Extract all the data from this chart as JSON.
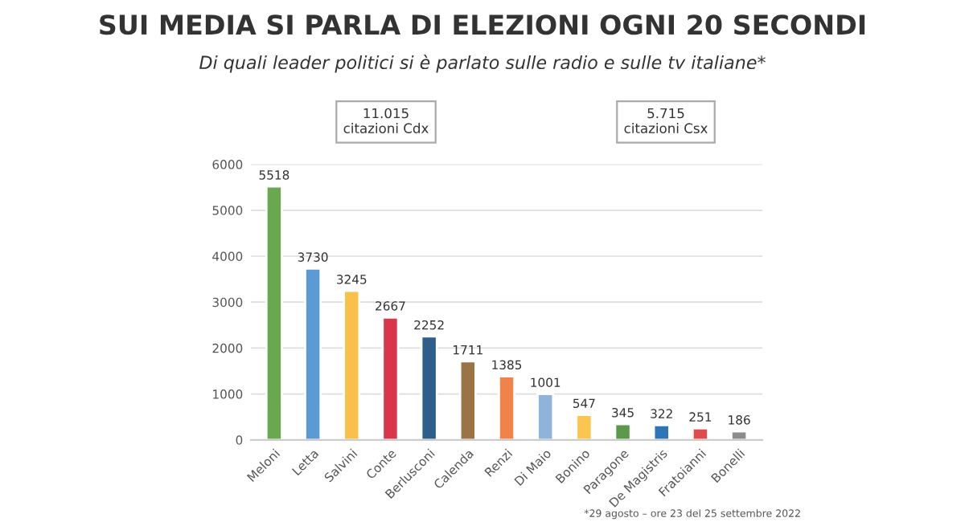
{
  "chart_data": {
    "type": "bar",
    "title": "SUI MEDIA SI PARLA DI ELEZIONI OGNI 20 SECONDI",
    "subtitle": "Di quali leader politici si è parlato sulle radio e sulle tv italiane*",
    "categories": [
      "Meloni",
      "Letta",
      "Salvini",
      "Conte",
      "Berlusconi",
      "Calenda",
      "Renzi",
      "Di Maio",
      "Bonino",
      "Paragone",
      "De Magistris",
      "Fratoianni",
      "Bonelli"
    ],
    "values": [
      5518,
      3730,
      3245,
      2667,
      2252,
      1711,
      1385,
      1001,
      547,
      345,
      322,
      251,
      186
    ],
    "colors": [
      "#6aa84f",
      "#5b9bd5",
      "#f9c14a",
      "#d9364a",
      "#2e5f8a",
      "#9a7444",
      "#f0834a",
      "#8fb4dc",
      "#f9c74f",
      "#5a9a4a",
      "#2e75b6",
      "#e04b4b",
      "#8c8c8c"
    ],
    "ylim": [
      0,
      6000
    ],
    "yticks": [
      0,
      1000,
      2000,
      3000,
      4000,
      5000,
      6000
    ],
    "grid": "y",
    "data_labels": true,
    "legend": false,
    "annotations": [
      "11.015\ncitazioni Cdx",
      "5.715\ncitazioni Csx",
      "*29 agosto – ore 23 del 25 settembre 2022"
    ]
  }
}
